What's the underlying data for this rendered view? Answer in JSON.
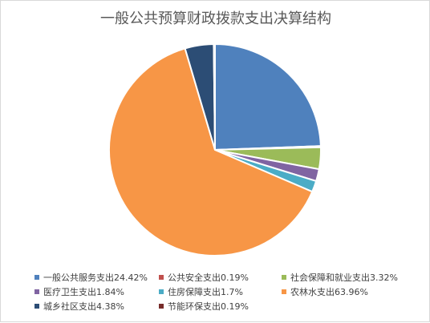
{
  "chart_data": {
    "type": "pie",
    "title": "一般公共预算财政拨款支出决算结构",
    "series": [
      {
        "name": "一般公共服务支出",
        "value": 24.42,
        "label": "一般公共服务支出24.42%",
        "color": "#4f81bd"
      },
      {
        "name": "公共安全支出",
        "value": 0.19,
        "label": "公共安全支出0.19%",
        "color": "#c0504d"
      },
      {
        "name": "社会保障和就业支出",
        "value": 3.32,
        "label": "社会保障和就业支出3.32%",
        "color": "#9bbb59"
      },
      {
        "name": "医疗卫生支出",
        "value": 1.84,
        "label": "医疗卫生支出1.84%",
        "color": "#8064a2"
      },
      {
        "name": "住房保障支出",
        "value": 1.7,
        "label": "住房保障支出1.7%",
        "color": "#4bacc6"
      },
      {
        "name": "农林水支出",
        "value": 63.96,
        "label": "农林水支出63.96%",
        "color": "#f79646"
      },
      {
        "name": "城乡社区支出",
        "value": 4.38,
        "label": "城乡社区支出4.38%",
        "color": "#2c4d75"
      },
      {
        "name": "节能环保支出",
        "value": 0.19,
        "label": "节能环保支出0.19%",
        "color": "#772c2a"
      }
    ],
    "legend_position": "bottom",
    "start_angle": "12 o'clock, clockwise"
  }
}
